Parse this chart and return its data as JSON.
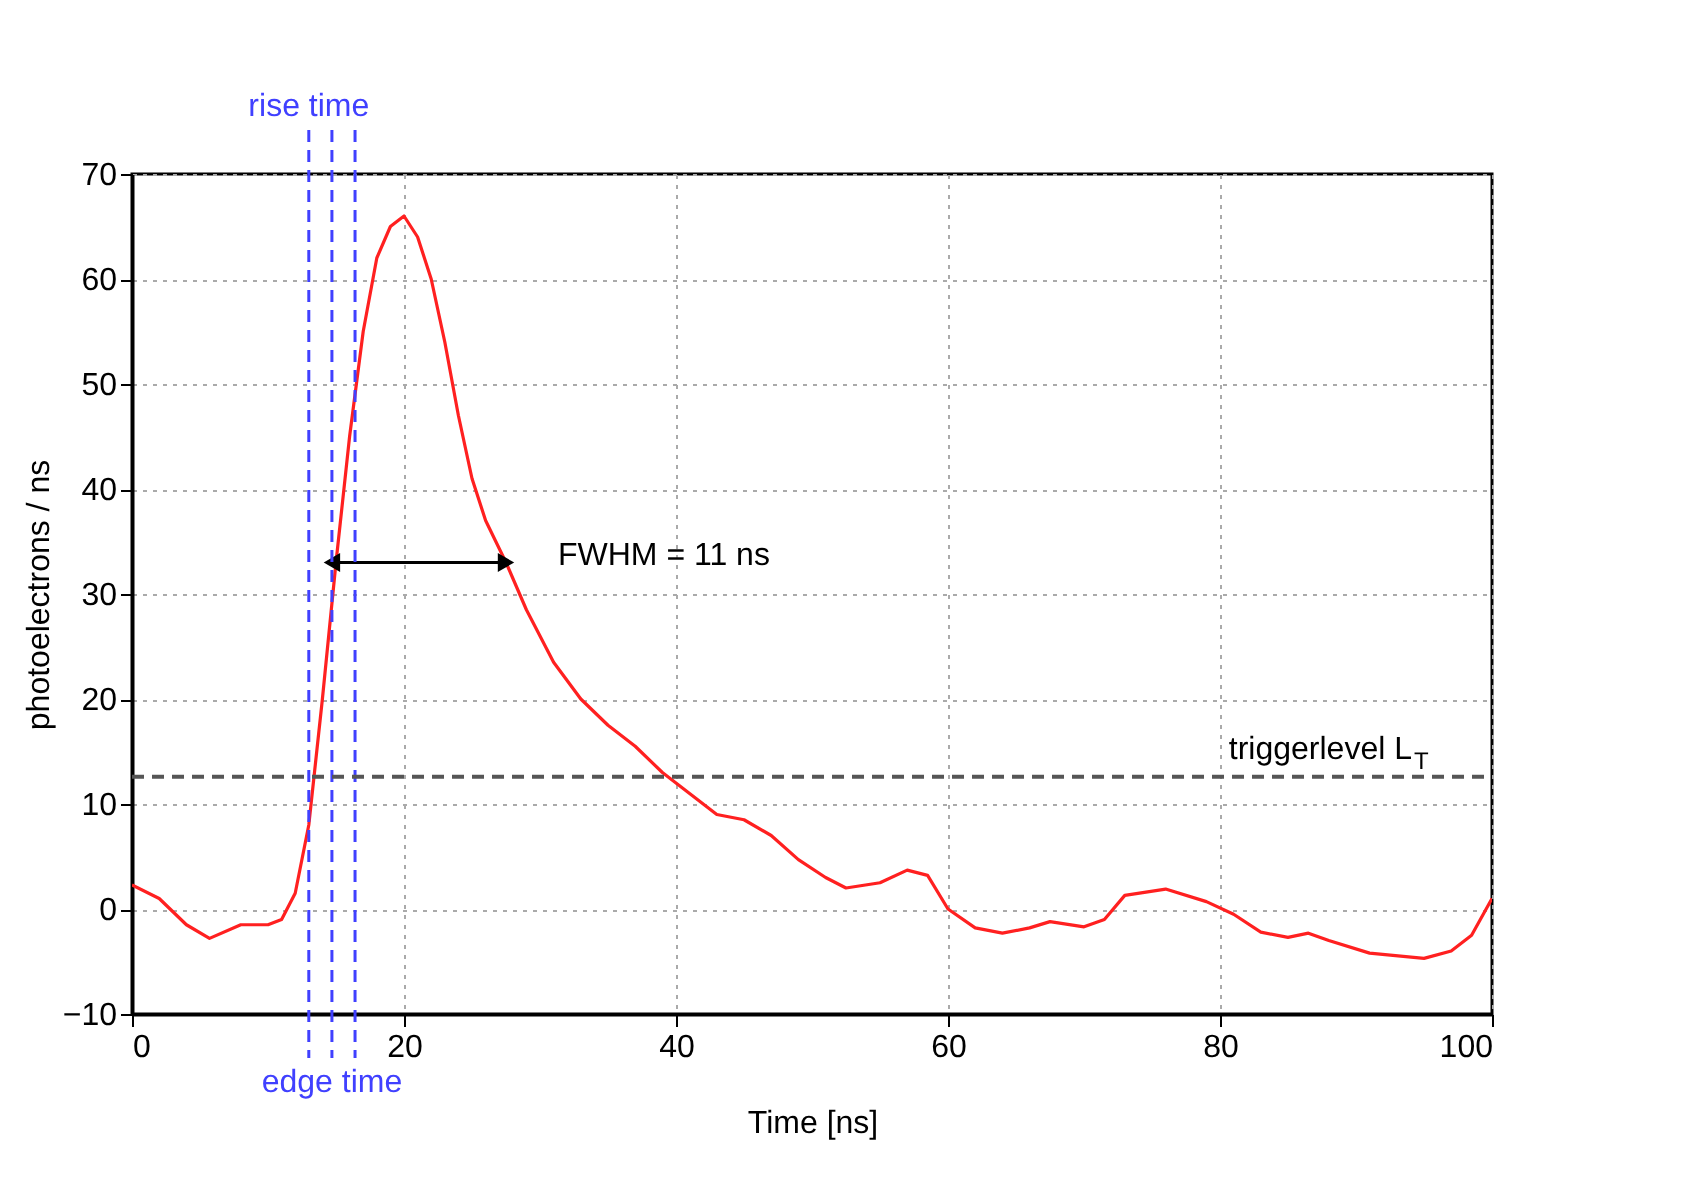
{
  "chart_data": {
    "type": "line",
    "xlabel": "Time [ns]",
    "ylabel": "photoelectrons / ns",
    "x": [
      0,
      2,
      4,
      5.7,
      8,
      10,
      11,
      12,
      13,
      14,
      15,
      16,
      17,
      18,
      19,
      20,
      21,
      22,
      23,
      24,
      25,
      26,
      27.5,
      29,
      31,
      33,
      35,
      37,
      39,
      41,
      43,
      45,
      47,
      49,
      51,
      52.5,
      55,
      57,
      58.5,
      60,
      62,
      64,
      66,
      67.5,
      70,
      71.5,
      73,
      76,
      79,
      81,
      83,
      85,
      86.5,
      88,
      91,
      95,
      97,
      98.5,
      100
    ],
    "series": [
      {
        "color": "#ff2020",
        "values": [
          2.3,
          1,
          -1.5,
          -2.8,
          -1.5,
          -1.5,
          -1,
          1.5,
          8,
          20,
          33,
          45,
          55,
          62,
          65,
          66,
          64,
          60,
          54,
          47,
          41,
          37,
          33,
          28.5,
          23.5,
          20,
          17.5,
          15.5,
          13,
          11,
          9,
          8.5,
          7,
          4.7,
          3,
          2,
          2.5,
          3.7,
          3.2,
          0,
          -1.8,
          -2.3,
          -1.8,
          -1.2,
          -1.7,
          -1,
          1.3,
          1.9,
          0.7,
          -0.5,
          -2.2,
          -2.7,
          -2.3,
          -3,
          -4.2,
          -4.7,
          -4,
          -2.5,
          1
        ]
      },
      {
        "type": "line",
        "x": [
          14.7,
          27.5
        ],
        "values": [
          33,
          33
        ],
        "color": "#000000",
        "marker": "triangle"
      }
    ],
    "xlim": [
      0,
      100
    ],
    "xticks": [
      0,
      20,
      40,
      60,
      80,
      100
    ],
    "ylim": [
      -10,
      70
    ],
    "yticks": [
      -10,
      0,
      10,
      20,
      30,
      40,
      50,
      60,
      70
    ],
    "grid": true,
    "line_style": "solid",
    "ref_lines": [
      {
        "axis": "x",
        "value": 13,
        "label": "rise time",
        "color": "#4040ff",
        "line_style": "dashed"
      },
      {
        "axis": "x",
        "value": 16.4,
        "color": "#4040ff",
        "line_style": "dashed"
      },
      {
        "axis": "x",
        "value": 14.7,
        "label": "edge time",
        "color": "#4040ff",
        "line_style": "dashed"
      },
      {
        "axis": "y",
        "value": 12.6,
        "label": "triggerlevel L$_{T}$",
        "color": "#555555",
        "line_style": "dashed"
      }
    ],
    "annotations": [
      {
        "text": "FWHM = 11 ns",
        "x": 27.5,
        "y": 33
      }
    ]
  }
}
